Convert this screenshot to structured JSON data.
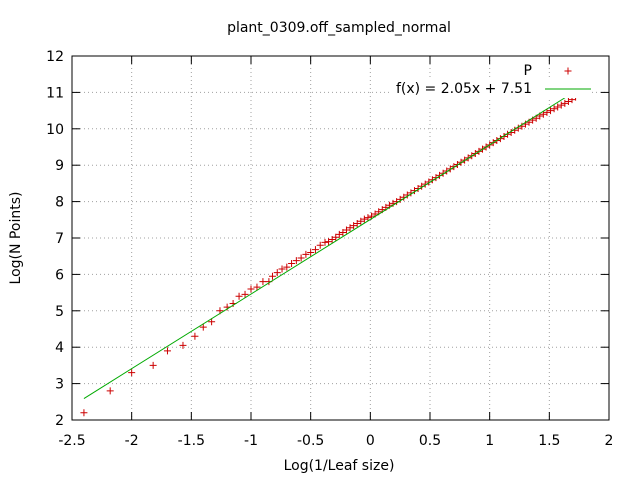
{
  "chart_data": {
    "type": "scatter",
    "title": "plant_0309.off_sampled_normal",
    "xlabel": "Log(1/Leaf size)",
    "ylabel": "Log(N Points)",
    "xlim": [
      -2.5,
      2
    ],
    "ylim": [
      2,
      12
    ],
    "grid": true,
    "legend_position": "top-right",
    "x_ticks": [
      "-2.5",
      "-2",
      "-1.5",
      "-1",
      "-0.5",
      "0",
      "0.5",
      "1",
      "1.5",
      "2"
    ],
    "y_ticks": [
      "2",
      "3",
      "4",
      "5",
      "6",
      "7",
      "8",
      "9",
      "10",
      "11",
      "12"
    ],
    "series": [
      {
        "name": "P",
        "kind": "points",
        "marker": "plus",
        "color": "#cc0000",
        "x": [
          -2.4,
          -2.18,
          -2.0,
          -1.82,
          -1.7,
          -1.57,
          -1.47,
          -1.4,
          -1.33,
          -1.26,
          -1.2,
          -1.15,
          -1.1,
          -1.05,
          -1.0,
          -0.95,
          -0.9,
          -0.85,
          -0.82,
          -0.78,
          -0.74,
          -0.7,
          -0.66,
          -0.62,
          -0.58,
          -0.54,
          -0.5,
          -0.46,
          -0.42,
          -0.38,
          -0.35,
          -0.32,
          -0.29,
          -0.26,
          -0.23,
          -0.2,
          -0.17,
          -0.14,
          -0.11,
          -0.08,
          -0.05,
          -0.02,
          0.01,
          0.04,
          0.07,
          0.1,
          0.13,
          0.16,
          0.19,
          0.22,
          0.25,
          0.28,
          0.31,
          0.34,
          0.37,
          0.4,
          0.43,
          0.46,
          0.49,
          0.52,
          0.55,
          0.58,
          0.61,
          0.64,
          0.67,
          0.7,
          0.73,
          0.76,
          0.79,
          0.82,
          0.85,
          0.88,
          0.91,
          0.94,
          0.97,
          1.0,
          1.03,
          1.06,
          1.09,
          1.12,
          1.15,
          1.18,
          1.21,
          1.24,
          1.27,
          1.3,
          1.33,
          1.36,
          1.39,
          1.42,
          1.45,
          1.48,
          1.51,
          1.54,
          1.57,
          1.6,
          1.63,
          1.66,
          1.69,
          1.72,
          1.75
        ],
        "y": [
          2.2,
          2.8,
          3.3,
          3.5,
          3.9,
          4.05,
          4.3,
          4.55,
          4.7,
          5.0,
          5.1,
          5.2,
          5.4,
          5.45,
          5.6,
          5.65,
          5.8,
          5.8,
          5.95,
          6.05,
          6.15,
          6.2,
          6.3,
          6.38,
          6.45,
          6.55,
          6.6,
          6.68,
          6.8,
          6.88,
          6.9,
          6.96,
          7.02,
          7.1,
          7.15,
          7.22,
          7.28,
          7.34,
          7.4,
          7.46,
          7.52,
          7.56,
          7.6,
          7.66,
          7.72,
          7.78,
          7.84,
          7.9,
          7.95,
          8.0,
          8.06,
          8.12,
          8.18,
          8.24,
          8.3,
          8.36,
          8.42,
          8.48,
          8.54,
          8.6,
          8.66,
          8.72,
          8.78,
          8.84,
          8.9,
          8.96,
          9.02,
          9.08,
          9.14,
          9.2,
          9.26,
          9.32,
          9.38,
          9.44,
          9.5,
          9.56,
          9.62,
          9.68,
          9.73,
          9.79,
          9.85,
          9.9,
          9.96,
          10.02,
          10.07,
          10.13,
          10.18,
          10.24,
          10.29,
          10.35,
          10.4,
          10.45,
          10.5,
          10.55,
          10.6,
          10.65,
          10.7,
          10.75,
          10.8,
          10.87,
          10.95
        ]
      },
      {
        "name": "f(x) = 2.05x + 7.51",
        "kind": "line",
        "color": "#00aa00",
        "x": [
          -2.4,
          1.8
        ],
        "y": [
          2.59,
          11.2
        ]
      }
    ]
  }
}
